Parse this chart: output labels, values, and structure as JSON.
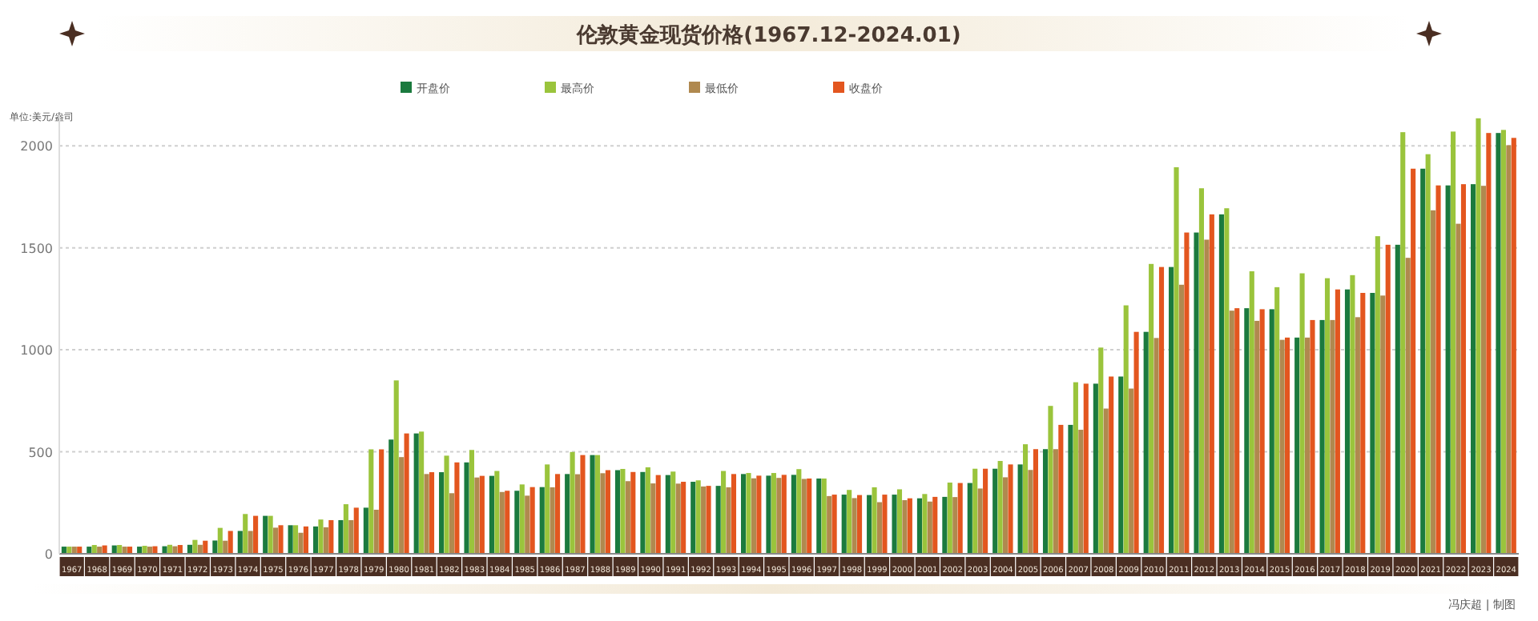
{
  "chart_data": {
    "type": "bar",
    "title": "伦敦黄金现货价格(1967.12-2024.01)",
    "ylabel": "单位:美元/盎司",
    "categories": [
      "1967",
      "1968",
      "1969",
      "1970",
      "1971",
      "1972",
      "1973",
      "1974",
      "1975",
      "1976",
      "1977",
      "1978",
      "1979",
      "1980",
      "1981",
      "1982",
      "1983",
      "1984",
      "1985",
      "1986",
      "1987",
      "1988",
      "1989",
      "1990",
      "1991",
      "1992",
      "1993",
      "1994",
      "1995",
      "1996",
      "1997",
      "1998",
      "1999",
      "2000",
      "2001",
      "2002",
      "2003",
      "2004",
      "2005",
      "2006",
      "2007",
      "2008",
      "2009",
      "2010",
      "2011",
      "2012",
      "2013",
      "2014",
      "2015",
      "2016",
      "2017",
      "2018",
      "2019",
      "2020",
      "2021",
      "2022",
      "2023",
      "2024"
    ],
    "series": [
      {
        "name": "开盘价",
        "color": "#1b7a3e",
        "values": [
          35,
          35,
          41,
          35,
          37,
          44,
          65,
          112,
          186,
          140,
          134,
          165,
          226,
          560,
          590,
          400,
          448,
          382,
          309,
          327,
          391,
          484,
          410,
          401,
          386,
          353,
          333,
          391,
          383,
          387,
          369,
          290,
          288,
          290,
          272,
          279,
          347,
          417,
          438,
          513,
          632,
          834,
          869,
          1088,
          1406,
          1575,
          1664,
          1204,
          1199,
          1060,
          1146,
          1296,
          1279,
          1515,
          1888,
          1806,
          1812,
          2063
        ]
      },
      {
        "name": "最高价",
        "color": "#9ac43c",
        "values": [
          35,
          43,
          43,
          39,
          44,
          68,
          127,
          195,
          186,
          140,
          168,
          243,
          512,
          850,
          599,
          481,
          509,
          406,
          340,
          438,
          499,
          484,
          416,
          424,
          403,
          360,
          406,
          396,
          396,
          415,
          369,
          313,
          326,
          316,
          293,
          349,
          417,
          455,
          537,
          725,
          841,
          1011,
          1218,
          1421,
          1895,
          1792,
          1694,
          1385,
          1307,
          1375,
          1351,
          1366,
          1557,
          2067,
          1959,
          2070,
          2135,
          2078
        ]
      },
      {
        "name": "最低价",
        "color": "#b0894f",
        "values": [
          35,
          35,
          35,
          35,
          37,
          44,
          64,
          112,
          128,
          103,
          130,
          165,
          216,
          474,
          391,
          297,
          374,
          303,
          285,
          326,
          390,
          395,
          356,
          345,
          344,
          330,
          326,
          370,
          372,
          367,
          283,
          273,
          253,
          263,
          256,
          278,
          320,
          375,
          411,
          513,
          608,
          712,
          810,
          1058,
          1319,
          1540,
          1192,
          1142,
          1049,
          1060,
          1146,
          1160,
          1266,
          1451,
          1684,
          1618,
          1804,
          2003
        ]
      },
      {
        "name": "收盘价",
        "color": "#e3561f",
        "values": [
          35,
          41,
          35,
          37,
          43,
          64,
          112,
          186,
          140,
          134,
          165,
          226,
          512,
          590,
          400,
          448,
          382,
          309,
          327,
          391,
          484,
          410,
          401,
          386,
          353,
          333,
          391,
          383,
          387,
          369,
          290,
          288,
          290,
          272,
          279,
          347,
          417,
          438,
          513,
          632,
          834,
          869,
          1088,
          1406,
          1575,
          1664,
          1204,
          1199,
          1060,
          1146,
          1296,
          1279,
          1515,
          1888,
          1806,
          1812,
          2063,
          2039
        ]
      }
    ],
    "ylim": [
      0,
      2150
    ],
    "yticks": [
      0,
      500,
      1000,
      1500,
      2000
    ],
    "grid": "y",
    "legend": "top",
    "annotations": [
      "冯庆超 | 制图"
    ]
  }
}
